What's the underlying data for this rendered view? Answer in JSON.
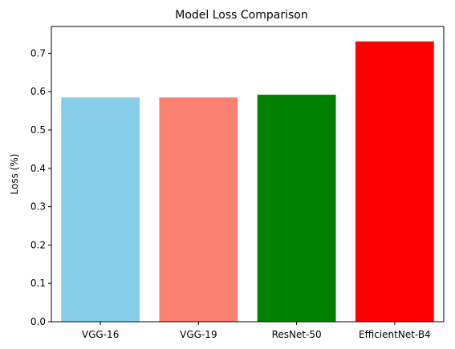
{
  "chart_data": {
    "type": "bar",
    "title": "Model Loss Comparison",
    "xlabel": "",
    "ylabel": "Loss (%)",
    "categories": [
      "VGG-16",
      "VGG-19",
      "ResNet-50",
      "EfficientNet-B4"
    ],
    "values": [
      0.585,
      0.585,
      0.592,
      0.731
    ],
    "colors": [
      "#87CEEB",
      "#FA8072",
      "#008000",
      "#FF0000"
    ],
    "ylim": [
      0,
      0.77
    ],
    "yticks": [
      0.0,
      0.1,
      0.2,
      0.3,
      0.4,
      0.5,
      0.6,
      0.7
    ],
    "ytick_labels": [
      "0.0",
      "0.1",
      "0.2",
      "0.3",
      "0.4",
      "0.5",
      "0.6",
      "0.7"
    ],
    "grid": false,
    "legend": "none"
  }
}
